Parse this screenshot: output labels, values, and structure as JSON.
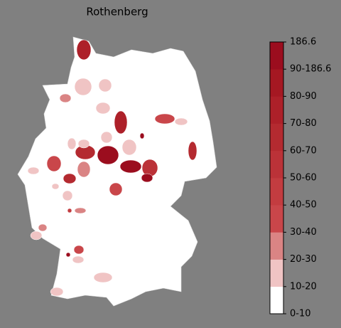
{
  "map": {
    "title": "Rothenberg",
    "legend": {
      "labels": [
        "0-10",
        "10-20",
        "20-30",
        "30-40",
        "40-50",
        "50-60",
        "60-70",
        "70-80",
        "80-90",
        "90-186.6",
        "186.6"
      ],
      "colors": [
        "#ffffff",
        "#f0c4c4",
        "#da8484",
        "#c9464a",
        "#c33c40",
        "#bb3238",
        "#b42a30",
        "#ad2029",
        "#a51822",
        "#9b0d1e"
      ]
    }
  }
}
